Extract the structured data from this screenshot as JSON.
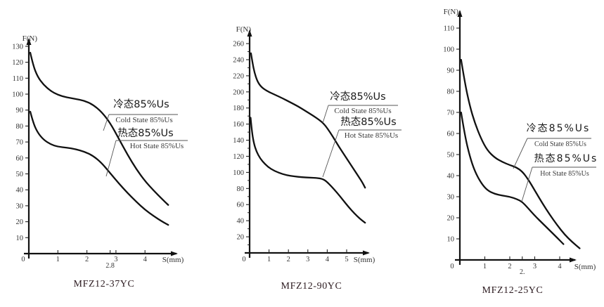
{
  "figure": {
    "background": "#ffffff",
    "colors": {
      "curve": "#111111",
      "tick_text": "#333333",
      "legend_en_text": "#3a3a3a",
      "legend_cn_text": "#1a1a1a",
      "title_text": "#2b1a1f"
    }
  },
  "chart_data": [
    {
      "type": "line",
      "title": "MFZ12-37YC",
      "xlabel": "S(mm)",
      "ylabel": "F(N)",
      "xlim": [
        0,
        5.2
      ],
      "ylim": [
        0,
        140
      ],
      "grid": false,
      "legend_position": "right-middle",
      "x_ticks": [
        "0",
        "1",
        "2",
        "3",
        "4"
      ],
      "x_tick_values": [
        0,
        1,
        2,
        3,
        4
      ],
      "y_ticks": [
        10,
        20,
        30,
        40,
        50,
        60,
        70,
        80,
        90,
        100,
        110,
        120,
        130
      ],
      "y_minor_tick_step": 0,
      "x_annotations": [
        {
          "x": 2.8,
          "label": "2.8"
        }
      ],
      "series": [
        {
          "name": "cold",
          "label_cn": "冷态85%Us",
          "label_en": "Cold State 85%Us",
          "color": "#111111",
          "points": [
            [
              0.05,
              126
            ],
            [
              0.15,
              118
            ],
            [
              0.3,
              111
            ],
            [
              0.5,
              106
            ],
            [
              0.75,
              102
            ],
            [
              1.0,
              99.5
            ],
            [
              1.3,
              98
            ],
            [
              1.6,
              97
            ],
            [
              1.9,
              96
            ],
            [
              2.2,
              93.5
            ],
            [
              2.5,
              89
            ],
            [
              2.8,
              82
            ],
            [
              3.1,
              72
            ],
            [
              3.4,
              62
            ],
            [
              3.7,
              53
            ],
            [
              4.0,
              45.5
            ],
            [
              4.3,
              39.5
            ],
            [
              4.6,
              34
            ],
            [
              4.8,
              30.5
            ]
          ]
        },
        {
          "name": "hot",
          "label_cn": "热态85%Us",
          "label_en": "Hot State 85%Us",
          "color": "#111111",
          "points": [
            [
              0.05,
              89
            ],
            [
              0.15,
              82
            ],
            [
              0.3,
              76
            ],
            [
              0.5,
              71.5
            ],
            [
              0.75,
              68.5
            ],
            [
              1.0,
              67
            ],
            [
              1.3,
              66.5
            ],
            [
              1.6,
              65.5
            ],
            [
              1.9,
              64
            ],
            [
              2.2,
              61.5
            ],
            [
              2.5,
              57
            ],
            [
              2.8,
              50.5
            ],
            [
              3.1,
              44
            ],
            [
              3.4,
              38
            ],
            [
              3.7,
              32.5
            ],
            [
              4.0,
              27.5
            ],
            [
              4.3,
              23.5
            ],
            [
              4.6,
              20
            ],
            [
              4.8,
              18
            ]
          ]
        }
      ]
    },
    {
      "type": "line",
      "title": "MFZ12-90YC",
      "xlabel": "S(mm)",
      "ylabel": "F(N)",
      "xlim": [
        0,
        6.2
      ],
      "ylim": [
        0,
        275
      ],
      "grid": false,
      "legend_position": "right-middle",
      "x_ticks": [
        "0",
        "1",
        "2",
        "3",
        "4",
        "5"
      ],
      "x_tick_values": [
        0,
        1,
        2,
        3,
        4,
        5
      ],
      "y_ticks": [
        20,
        40,
        60,
        80,
        100,
        120,
        140,
        160,
        180,
        200,
        220,
        240,
        260
      ],
      "y_minor_tick_step": 10,
      "x_annotations": [],
      "series": [
        {
          "name": "cold",
          "label_cn": "冷态85%Us",
          "label_en": "Cold State 85%Us",
          "color": "#111111",
          "points": [
            [
              0.07,
              248
            ],
            [
              0.15,
              236
            ],
            [
              0.25,
              224
            ],
            [
              0.4,
              213
            ],
            [
              0.6,
              206
            ],
            [
              0.9,
              201
            ],
            [
              1.3,
              196.5
            ],
            [
              1.7,
              192
            ],
            [
              2.1,
              187
            ],
            [
              2.5,
              182
            ],
            [
              2.9,
              176
            ],
            [
              3.3,
              170
            ],
            [
              3.6,
              165
            ],
            [
              3.8,
              161
            ],
            [
              4.0,
              155
            ],
            [
              4.3,
              144
            ],
            [
              4.6,
              132
            ],
            [
              4.9,
              121
            ],
            [
              5.2,
              110
            ],
            [
              5.5,
              99
            ],
            [
              5.8,
              88
            ],
            [
              5.95,
              81
            ]
          ]
        },
        {
          "name": "hot",
          "label_cn": "热态85%Us",
          "label_en": "Hot State 85%Us",
          "color": "#111111",
          "points": [
            [
              0.05,
              168
            ],
            [
              0.12,
              150
            ],
            [
              0.22,
              136
            ],
            [
              0.35,
              126
            ],
            [
              0.55,
              117
            ],
            [
              0.8,
              110
            ],
            [
              1.1,
              104
            ],
            [
              1.5,
              99.5
            ],
            [
              1.9,
              96.5
            ],
            [
              2.3,
              95
            ],
            [
              2.7,
              94
            ],
            [
              3.1,
              93.5
            ],
            [
              3.5,
              93
            ],
            [
              3.75,
              92
            ],
            [
              3.95,
              89
            ],
            [
              4.2,
              83
            ],
            [
              4.5,
              75
            ],
            [
              4.8,
              66
            ],
            [
              5.1,
              57
            ],
            [
              5.4,
              49
            ],
            [
              5.7,
              42
            ],
            [
              5.95,
              37.5
            ]
          ]
        }
      ]
    },
    {
      "type": "line",
      "title": "MFZ12-25YC",
      "xlabel": "S(mm)",
      "ylabel": "F(N)",
      "xlim": [
        0,
        5.0
      ],
      "ylim": [
        0,
        120
      ],
      "grid": false,
      "legend_position": "right-middle",
      "x_ticks": [
        "0",
        "1",
        "2",
        "3",
        "4"
      ],
      "x_tick_values": [
        0,
        1,
        2,
        3,
        4
      ],
      "y_ticks": [
        10,
        20,
        30,
        40,
        50,
        60,
        70,
        80,
        90,
        100,
        110
      ],
      "y_minor_tick_step": 0,
      "x_annotations": [
        {
          "x": 2.5,
          "label": "2."
        }
      ],
      "series": [
        {
          "name": "cold",
          "label_cn": "冷态85%Us",
          "label_en": "Cold State 85%Us",
          "color": "#111111",
          "points": [
            [
              0.05,
              95
            ],
            [
              0.2,
              84
            ],
            [
              0.4,
              73
            ],
            [
              0.6,
              65
            ],
            [
              0.85,
              57.5
            ],
            [
              1.1,
              52
            ],
            [
              1.4,
              48.5
            ],
            [
              1.7,
              46.5
            ],
            [
              2.0,
              45
            ],
            [
              2.25,
              44
            ],
            [
              2.5,
              42
            ],
            [
              2.75,
              38
            ],
            [
              3.0,
              33
            ],
            [
              3.3,
              27
            ],
            [
              3.6,
              21.5
            ],
            [
              3.9,
              16.5
            ],
            [
              4.2,
              12
            ],
            [
              4.5,
              8.5
            ],
            [
              4.8,
              5.5
            ]
          ]
        },
        {
          "name": "hot",
          "label_cn": "热态85%Us",
          "label_en": "Hot State 85%Us",
          "color": "#111111",
          "points": [
            [
              0.05,
              70
            ],
            [
              0.2,
              59
            ],
            [
              0.4,
              49
            ],
            [
              0.6,
              42
            ],
            [
              0.85,
              36.5
            ],
            [
              1.1,
              33
            ],
            [
              1.4,
              31.3
            ],
            [
              1.7,
              30.5
            ],
            [
              2.0,
              30
            ],
            [
              2.3,
              28.8
            ],
            [
              2.5,
              27.5
            ],
            [
              2.7,
              25
            ],
            [
              3.0,
              21
            ],
            [
              3.3,
              17.5
            ],
            [
              3.6,
              14
            ],
            [
              3.9,
              10.5
            ],
            [
              4.15,
              7.5
            ]
          ]
        }
      ]
    }
  ]
}
